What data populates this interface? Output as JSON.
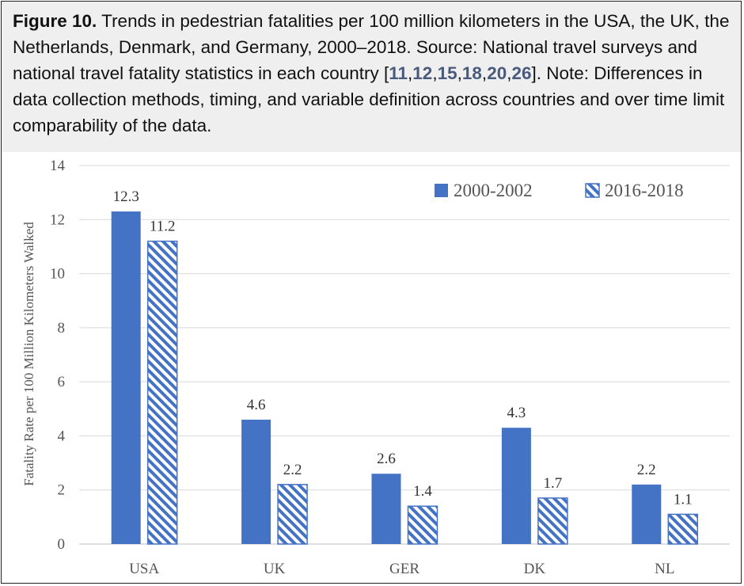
{
  "caption": {
    "label": "Figure 10.",
    "text_main": "Trends in pedestrian fatalities per 100 million kilometers in the USA, the UK, the Netherlands, Denmark, and Germany, 2000–2018. Source: National travel surveys and national travel fatality statistics in each country [",
    "refs": [
      "11",
      "12",
      "15",
      "18",
      "20",
      "26"
    ],
    "text_after": "]. Note: Differences in data collection methods, timing, and variable definition across countries and over time limit comparability of the data."
  },
  "colors": {
    "bar_primary": "#4472C4",
    "caption_bg": "#efefef"
  },
  "chart_data": {
    "type": "bar",
    "title": "",
    "xlabel": "",
    "ylabel": "Fatality Rate per 100 Million Kilometers Walked",
    "ylim": [
      0,
      14
    ],
    "yticks": [
      "0",
      "2",
      "4",
      "6",
      "8",
      "10",
      "12",
      "14"
    ],
    "grid": true,
    "legend_position": "top-right",
    "categories": [
      "USA",
      "UK",
      "GER",
      "DK",
      "NL"
    ],
    "series": [
      {
        "name": "2000-2002",
        "style": "solid",
        "values": [
          12.3,
          4.6,
          2.6,
          4.3,
          2.2
        ],
        "labels": [
          "12.3",
          "4.6",
          "2.6",
          "4.3",
          "2.2"
        ]
      },
      {
        "name": "2016-2018",
        "style": "hatched",
        "values": [
          11.2,
          2.2,
          1.4,
          1.7,
          1.1
        ],
        "labels": [
          "11.2",
          "2.2",
          "1.4",
          "1.7",
          "1.1"
        ]
      }
    ]
  }
}
